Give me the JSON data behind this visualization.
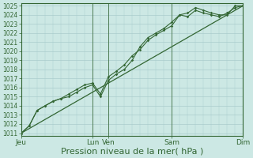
{
  "title": "",
  "xlabel": "Pression niveau de la mer( hPa )",
  "ylabel": "",
  "bg_color": "#cce8e4",
  "grid_color": "#aacccc",
  "line_color": "#336633",
  "ylim": [
    1011,
    1025
  ],
  "yticks": [
    1011,
    1012,
    1013,
    1014,
    1015,
    1016,
    1017,
    1018,
    1019,
    1020,
    1021,
    1022,
    1023,
    1024,
    1025
  ],
  "xtick_labels": [
    "Jeu",
    "Lun",
    "Ven",
    "Sam",
    "Dim"
  ],
  "xtick_positions": [
    0,
    4.5,
    5.5,
    9.5,
    14
  ],
  "x_total": 14,
  "vline_positions": [
    0,
    4.5,
    5.5,
    9.5,
    14
  ],
  "line1_x": [
    0,
    0.5,
    1.0,
    1.5,
    2.0,
    2.5,
    3.0,
    3.5,
    4.0,
    4.5,
    5.0,
    5.5,
    6.0,
    6.5,
    7.0,
    7.5,
    8.0,
    8.5,
    9.0,
    9.5,
    10.0,
    10.5,
    11.0,
    11.5,
    12.0,
    12.5,
    13.0,
    13.5,
    14.0
  ],
  "line1_y": [
    1011.0,
    1011.8,
    1013.5,
    1014.0,
    1014.5,
    1014.8,
    1015.3,
    1015.8,
    1016.3,
    1016.5,
    1015.3,
    1017.2,
    1017.8,
    1018.5,
    1019.5,
    1020.2,
    1021.2,
    1021.8,
    1022.3,
    1022.8,
    1024.0,
    1024.2,
    1024.8,
    1024.5,
    1024.2,
    1024.0,
    1024.0,
    1025.0,
    1025.0
  ],
  "line2_x": [
    0,
    0.5,
    1.0,
    1.5,
    2.0,
    2.5,
    3.0,
    3.5,
    4.0,
    4.5,
    5.0,
    5.5,
    6.0,
    6.5,
    7.0,
    7.5,
    8.0,
    8.5,
    9.0,
    9.5,
    10.0,
    10.5,
    11.0,
    11.5,
    12.0,
    12.5,
    13.0,
    13.5,
    14.0
  ],
  "line2_y": [
    1011.0,
    1011.8,
    1013.5,
    1014.0,
    1014.5,
    1014.8,
    1015.0,
    1015.5,
    1016.0,
    1016.3,
    1015.0,
    1016.8,
    1017.5,
    1018.0,
    1019.0,
    1020.5,
    1021.5,
    1022.0,
    1022.5,
    1023.2,
    1024.0,
    1023.8,
    1024.5,
    1024.2,
    1024.0,
    1023.8,
    1024.2,
    1024.8,
    1025.0
  ],
  "line3_x": [
    0,
    14
  ],
  "line3_y": [
    1011,
    1025
  ],
  "xlabel_fontsize": 8,
  "ytick_fontsize": 5.5,
  "xtick_fontsize": 6.5
}
